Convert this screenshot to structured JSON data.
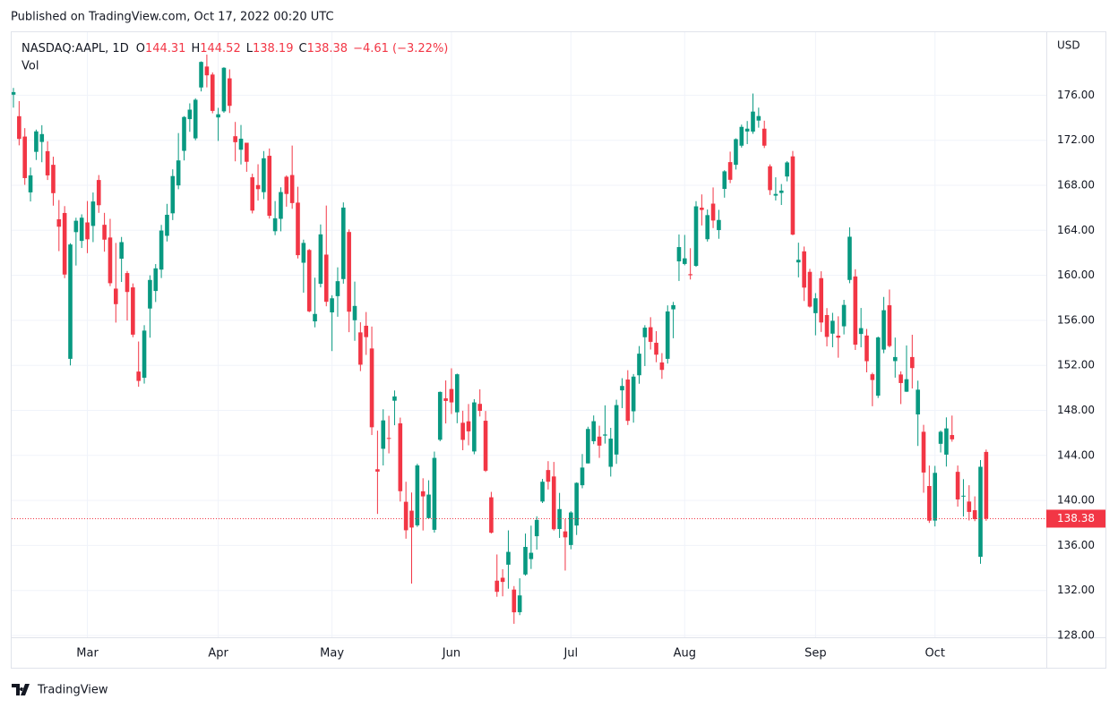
{
  "header": "Published on TradingView.com, Oct 17, 2022 00:20 UTC",
  "footer": "TradingView",
  "chart_data": {
    "type": "candlestick",
    "title": "NASDAQ:AAPL, 1D",
    "legend": [
      {
        "label": "O",
        "value": 144.31
      },
      {
        "label": "H",
        "value": 144.52
      },
      {
        "label": "L",
        "value": 138.19
      },
      {
        "label": "C",
        "value": 138.38
      }
    ],
    "change_label": "−4.61 (−3.22%)",
    "volume_label": "Vol",
    "currency": "USD",
    "last_price": {
      "value": 138.38,
      "label": "138.38"
    },
    "up_color": "#089981",
    "down_color": "#f23645",
    "grid": true,
    "ylim": [
      127.84,
      181.6
    ],
    "yticks": [
      {
        "value": 128,
        "label": "128.00"
      },
      {
        "value": 132,
        "label": "132.00"
      },
      {
        "value": 136,
        "label": "136.00"
      },
      {
        "value": 140,
        "label": "140.00"
      },
      {
        "value": 144,
        "label": "144.00"
      },
      {
        "value": 148,
        "label": "148.00"
      },
      {
        "value": 152,
        "label": "152.00"
      },
      {
        "value": 156,
        "label": "156.00"
      },
      {
        "value": 160,
        "label": "160.00"
      },
      {
        "value": 164,
        "label": "164.00"
      },
      {
        "value": 168,
        "label": "168.00"
      },
      {
        "value": 172,
        "label": "172.00"
      },
      {
        "value": 176,
        "label": "176.00"
      }
    ],
    "categories": [
      null,
      null,
      null,
      null,
      null,
      null,
      null,
      null,
      null,
      null,
      null,
      null,
      null,
      "Mar",
      null,
      null,
      null,
      null,
      null,
      null,
      null,
      null,
      null,
      null,
      null,
      null,
      null,
      null,
      null,
      null,
      null,
      null,
      null,
      null,
      null,
      null,
      "Apr",
      null,
      null,
      null,
      null,
      null,
      null,
      null,
      null,
      null,
      null,
      null,
      null,
      null,
      null,
      null,
      null,
      null,
      null,
      null,
      "May",
      null,
      null,
      null,
      null,
      null,
      null,
      null,
      null,
      null,
      null,
      null,
      null,
      null,
      null,
      null,
      null,
      null,
      null,
      null,
      null,
      "Jun",
      null,
      null,
      null,
      null,
      null,
      null,
      null,
      null,
      null,
      null,
      null,
      null,
      null,
      null,
      null,
      null,
      null,
      null,
      null,
      null,
      "Jul",
      null,
      null,
      null,
      null,
      null,
      null,
      null,
      null,
      null,
      null,
      null,
      null,
      null,
      null,
      null,
      null,
      null,
      null,
      null,
      "Aug",
      null,
      null,
      null,
      null,
      null,
      null,
      null,
      null,
      null,
      null,
      null,
      null,
      null,
      null,
      null,
      null,
      null,
      null,
      null,
      null,
      null,
      null,
      "Sep",
      null,
      null,
      null,
      null,
      null,
      null,
      null,
      null,
      null,
      null,
      null,
      null,
      null,
      null,
      null,
      null,
      null,
      null,
      null,
      null,
      "Oct",
      null,
      null,
      null,
      null,
      null,
      null,
      null,
      null,
      null
    ],
    "ohlc": [
      [
        176.05,
        176.65,
        174.9,
        176.28
      ],
      [
        174.14,
        175.48,
        171.55,
        172.12
      ],
      [
        172.33,
        173.08,
        168.04,
        168.64
      ],
      [
        167.37,
        169.58,
        166.56,
        168.88
      ],
      [
        170.97,
        172.95,
        170.25,
        172.79
      ],
      [
        171.85,
        173.34,
        170.05,
        172.55
      ],
      [
        171.03,
        171.91,
        168.47,
        168.88
      ],
      [
        169.82,
        170.54,
        166.19,
        167.3
      ],
      [
        164.98,
        166.69,
        162.15,
        164.32
      ],
      [
        165.54,
        166.15,
        159.75,
        160.07
      ],
      [
        152.58,
        162.85,
        152,
        162.74
      ],
      [
        163.84,
        165.12,
        160.87,
        164.85
      ],
      [
        163.06,
        165.42,
        162.43,
        165.12
      ],
      [
        164.7,
        166.6,
        161.97,
        163.2
      ],
      [
        164.39,
        167.36,
        162.95,
        166.56
      ],
      [
        168.47,
        168.91,
        165.55,
        166.23
      ],
      [
        164.49,
        165.55,
        162.1,
        163.17
      ],
      [
        163.36,
        165.02,
        159.04,
        159.3
      ],
      [
        158.82,
        162.88,
        155.8,
        157.44
      ],
      [
        161.48,
        163.41,
        159.41,
        162.95
      ],
      [
        160.2,
        160.39,
        155.98,
        158.52
      ],
      [
        158.93,
        159.28,
        154.5,
        154.73
      ],
      [
        151.45,
        154.12,
        150.1,
        150.62
      ],
      [
        150.9,
        155.57,
        150.38,
        155.09
      ],
      [
        157.05,
        160,
        154.46,
        159.59
      ],
      [
        158.61,
        161,
        157.63,
        160.62
      ],
      [
        160.51,
        164.48,
        159.76,
        163.98
      ],
      [
        163.51,
        166.35,
        163.01,
        165.38
      ],
      [
        165.51,
        169.42,
        164.91,
        168.82
      ],
      [
        167.99,
        172.64,
        167.65,
        170.21
      ],
      [
        171.06,
        174.14,
        170.21,
        174.07
      ],
      [
        173.88,
        175.28,
        172.75,
        174.72
      ],
      [
        172.17,
        175.73,
        172,
        175.6
      ],
      [
        176.69,
        179.01,
        176.34,
        178.96
      ],
      [
        178.55,
        179.61,
        176.7,
        177.77
      ],
      [
        177.84,
        178.03,
        174.4,
        174.61
      ],
      [
        174.03,
        174.88,
        171.94,
        174.31
      ],
      [
        174.57,
        178.49,
        174.44,
        178.44
      ],
      [
        177.5,
        178.3,
        174.42,
        175.06
      ],
      [
        172.36,
        173.63,
        170.13,
        171.83
      ],
      [
        171.16,
        173.36,
        169.85,
        172.14
      ],
      [
        171.78,
        171.78,
        169.2,
        170.09
      ],
      [
        168.71,
        169.03,
        165.5,
        165.75
      ],
      [
        168.02,
        169.87,
        166.64,
        167.66
      ],
      [
        167.39,
        171.04,
        166.77,
        170.4
      ],
      [
        170.62,
        171.27,
        165.04,
        165.29
      ],
      [
        163.92,
        166.6,
        163.57,
        165.07
      ],
      [
        165.02,
        167.82,
        163.91,
        167.4
      ],
      [
        168.76,
        168.88,
        166.1,
        167.23
      ],
      [
        168.91,
        171.53,
        165.91,
        166.42
      ],
      [
        166.46,
        167.87,
        161.5,
        161.79
      ],
      [
        161.12,
        163.17,
        158.46,
        162.88
      ],
      [
        162.25,
        162.34,
        156.72,
        156.8
      ],
      [
        155.91,
        159.79,
        155.38,
        156.57
      ],
      [
        159.25,
        164.52,
        158.93,
        163.64
      ],
      [
        161.84,
        166.2,
        157.25,
        157.65
      ],
      [
        156.71,
        158.23,
        153.27,
        157.96
      ],
      [
        158.15,
        160.71,
        156.32,
        159.48
      ],
      [
        159.67,
        166.48,
        159.26,
        166.02
      ],
      [
        163.85,
        164.08,
        154.95,
        156.77
      ],
      [
        156.01,
        159.44,
        154.18,
        157.28
      ],
      [
        154.93,
        155.83,
        151.49,
        152.06
      ],
      [
        155.52,
        156.74,
        152.93,
        154.51
      ],
      [
        153.5,
        155.45,
        145.81,
        146.5
      ],
      [
        142.77,
        146.2,
        138.8,
        142.56
      ],
      [
        144.59,
        148.1,
        143.11,
        147.11
      ],
      [
        145.55,
        147.52,
        144.18,
        145.54
      ],
      [
        148.86,
        149.77,
        146.68,
        149.24
      ],
      [
        146.85,
        147.36,
        139.9,
        140.82
      ],
      [
        139.88,
        141.66,
        136.6,
        137.35
      ],
      [
        139.09,
        140.7,
        132.61,
        137.59
      ],
      [
        137.79,
        143.26,
        137.65,
        143.11
      ],
      [
        140.81,
        141.97,
        137.33,
        140.36
      ],
      [
        138.43,
        141.79,
        138.34,
        140.52
      ],
      [
        137.39,
        144.34,
        137.14,
        143.78
      ],
      [
        145.39,
        149.68,
        145.26,
        149.64
      ],
      [
        149.07,
        150.66,
        146.84,
        148.84
      ],
      [
        149.9,
        151.74,
        147.68,
        148.71
      ],
      [
        147.83,
        151.27,
        146.86,
        151.21
      ],
      [
        146.9,
        147.97,
        144.46,
        145.38
      ],
      [
        147.03,
        148.57,
        144.9,
        146.14
      ],
      [
        144.35,
        149,
        144.1,
        148.71
      ],
      [
        148.58,
        149.87,
        147.46,
        147.96
      ],
      [
        147.08,
        147.95,
        142.53,
        142.64
      ],
      [
        140.28,
        140.76,
        137.06,
        137.13
      ],
      [
        132.87,
        135.2,
        131.44,
        131.88
      ],
      [
        133.13,
        133.89,
        131.48,
        132.76
      ],
      [
        134.29,
        137.34,
        132.16,
        135.43
      ],
      [
        132.08,
        132.39,
        129.04,
        130.06
      ],
      [
        130.07,
        133.08,
        129.81,
        131.56
      ],
      [
        133.42,
        137.06,
        133.32,
        135.87
      ],
      [
        134.79,
        137.76,
        133.91,
        135.35
      ],
      [
        136.82,
        138.59,
        135.63,
        138.27
      ],
      [
        139.9,
        141.91,
        139.77,
        141.66
      ],
      [
        142.7,
        143.49,
        140.97,
        141.66
      ],
      [
        142.13,
        143.42,
        137.32,
        137.44
      ],
      [
        137.46,
        140.67,
        136.67,
        139.23
      ],
      [
        137.25,
        138.37,
        133.77,
        136.72
      ],
      [
        136.04,
        139.04,
        135.66,
        138.93
      ],
      [
        137.77,
        141.61,
        136.93,
        141.56
      ],
      [
        141.35,
        144.12,
        141.08,
        142.92
      ],
      [
        143.29,
        146.55,
        143.28,
        146.35
      ],
      [
        145.26,
        147.55,
        145,
        147.04
      ],
      [
        145.67,
        146.64,
        143.78,
        144.87
      ],
      [
        145.76,
        148.45,
        145.05,
        145.86
      ],
      [
        142.99,
        146.45,
        142.12,
        145.49
      ],
      [
        144.08,
        148.95,
        143.25,
        148.47
      ],
      [
        149.78,
        150.86,
        148.2,
        150.17
      ],
      [
        150.74,
        151.57,
        146.7,
        147.07
      ],
      [
        147.92,
        151.23,
        146.91,
        151
      ],
      [
        151.12,
        153.72,
        150.37,
        153.04
      ],
      [
        154.5,
        155.57,
        151.94,
        155.35
      ],
      [
        155.39,
        156.28,
        153.41,
        154.09
      ],
      [
        154.01,
        155.04,
        152.28,
        152.95
      ],
      [
        152.26,
        153.09,
        150.8,
        151.6
      ],
      [
        152.58,
        157.33,
        152.16,
        156.79
      ],
      [
        156.98,
        157.64,
        154.41,
        157.35
      ],
      [
        161.24,
        163.63,
        159.5,
        162.51
      ],
      [
        161.01,
        163.59,
        160.89,
        161.51
      ],
      [
        160.1,
        162.41,
        159.63,
        160.01
      ],
      [
        160.84,
        166.59,
        160.75,
        166.13
      ],
      [
        166.01,
        167.19,
        164.43,
        165.81
      ],
      [
        163.21,
        165.85,
        163,
        165.35
      ],
      [
        166.37,
        167.81,
        164.2,
        164.87
      ],
      [
        164.02,
        165.82,
        163.25,
        164.92
      ],
      [
        167.68,
        169.34,
        166.9,
        169.24
      ],
      [
        170.06,
        170.99,
        168.19,
        168.49
      ],
      [
        169.82,
        172.17,
        169.4,
        172.1
      ],
      [
        171.52,
        173.39,
        171.35,
        173.19
      ],
      [
        172.78,
        173.71,
        171.66,
        173.03
      ],
      [
        172.77,
        176.15,
        172.57,
        174.55
      ],
      [
        173.75,
        174.9,
        173.12,
        174.15
      ],
      [
        173.03,
        173.74,
        171.31,
        171.52
      ],
      [
        169.69,
        169.86,
        167.14,
        167.57
      ],
      [
        167.08,
        168.71,
        166.65,
        167.23
      ],
      [
        167.32,
        168.11,
        166.25,
        167.53
      ],
      [
        168.78,
        170.14,
        168.35,
        170.03
      ],
      [
        170.57,
        171.05,
        163.56,
        163.62
      ],
      [
        161.15,
        162.9,
        159.82,
        161.38
      ],
      [
        162.13,
        162.56,
        157.72,
        158.91
      ],
      [
        160.31,
        160.58,
        157.14,
        157.22
      ],
      [
        156.64,
        158.42,
        154.67,
        157.96
      ],
      [
        159.75,
        160.36,
        154.97,
        155.81
      ],
      [
        156.47,
        157.09,
        153.69,
        154.53
      ],
      [
        154.82,
        156.67,
        153.61,
        155.96
      ],
      [
        154.64,
        156.36,
        152.68,
        154.46
      ],
      [
        155.47,
        157.82,
        154.75,
        157.37
      ],
      [
        159.59,
        164.26,
        159.3,
        163.43
      ],
      [
        159.9,
        160.54,
        153.37,
        153.84
      ],
      [
        154.79,
        157.1,
        153.61,
        155.31
      ],
      [
        154.65,
        155.24,
        151.38,
        152.37
      ],
      [
        151.21,
        151.35,
        148.37,
        150.7
      ],
      [
        149.31,
        154.56,
        149.1,
        154.48
      ],
      [
        153.4,
        158.08,
        153.08,
        156.9
      ],
      [
        157.34,
        158.74,
        153.6,
        153.72
      ],
      [
        152.38,
        154.47,
        150.91,
        152.74
      ],
      [
        151.19,
        151.47,
        148.56,
        150.43
      ],
      [
        149.66,
        153.77,
        149.64,
        150.77
      ],
      [
        152.74,
        154.72,
        149.95,
        151.76
      ],
      [
        147.64,
        150.64,
        144.84,
        149.84
      ],
      [
        146.1,
        146.72,
        140.68,
        142.48
      ],
      [
        141.28,
        143.1,
        138,
        138.2
      ],
      [
        138.21,
        143.07,
        137.69,
        142.45
      ],
      [
        145.03,
        146.22,
        144.26,
        146.1
      ],
      [
        144.07,
        147.38,
        143.01,
        146.4
      ],
      [
        145.81,
        147.54,
        145.22,
        145.43
      ],
      [
        142.54,
        143.1,
        139.45,
        140.09
      ],
      [
        140.42,
        141.89,
        138.57,
        140.42
      ],
      [
        139.9,
        141.35,
        138.22,
        138.98
      ],
      [
        139.13,
        140.36,
        138.16,
        138.34
      ],
      [
        134.99,
        143.59,
        134.37,
        142.99
      ],
      [
        144.31,
        144.52,
        138.19,
        138.38
      ]
    ]
  }
}
